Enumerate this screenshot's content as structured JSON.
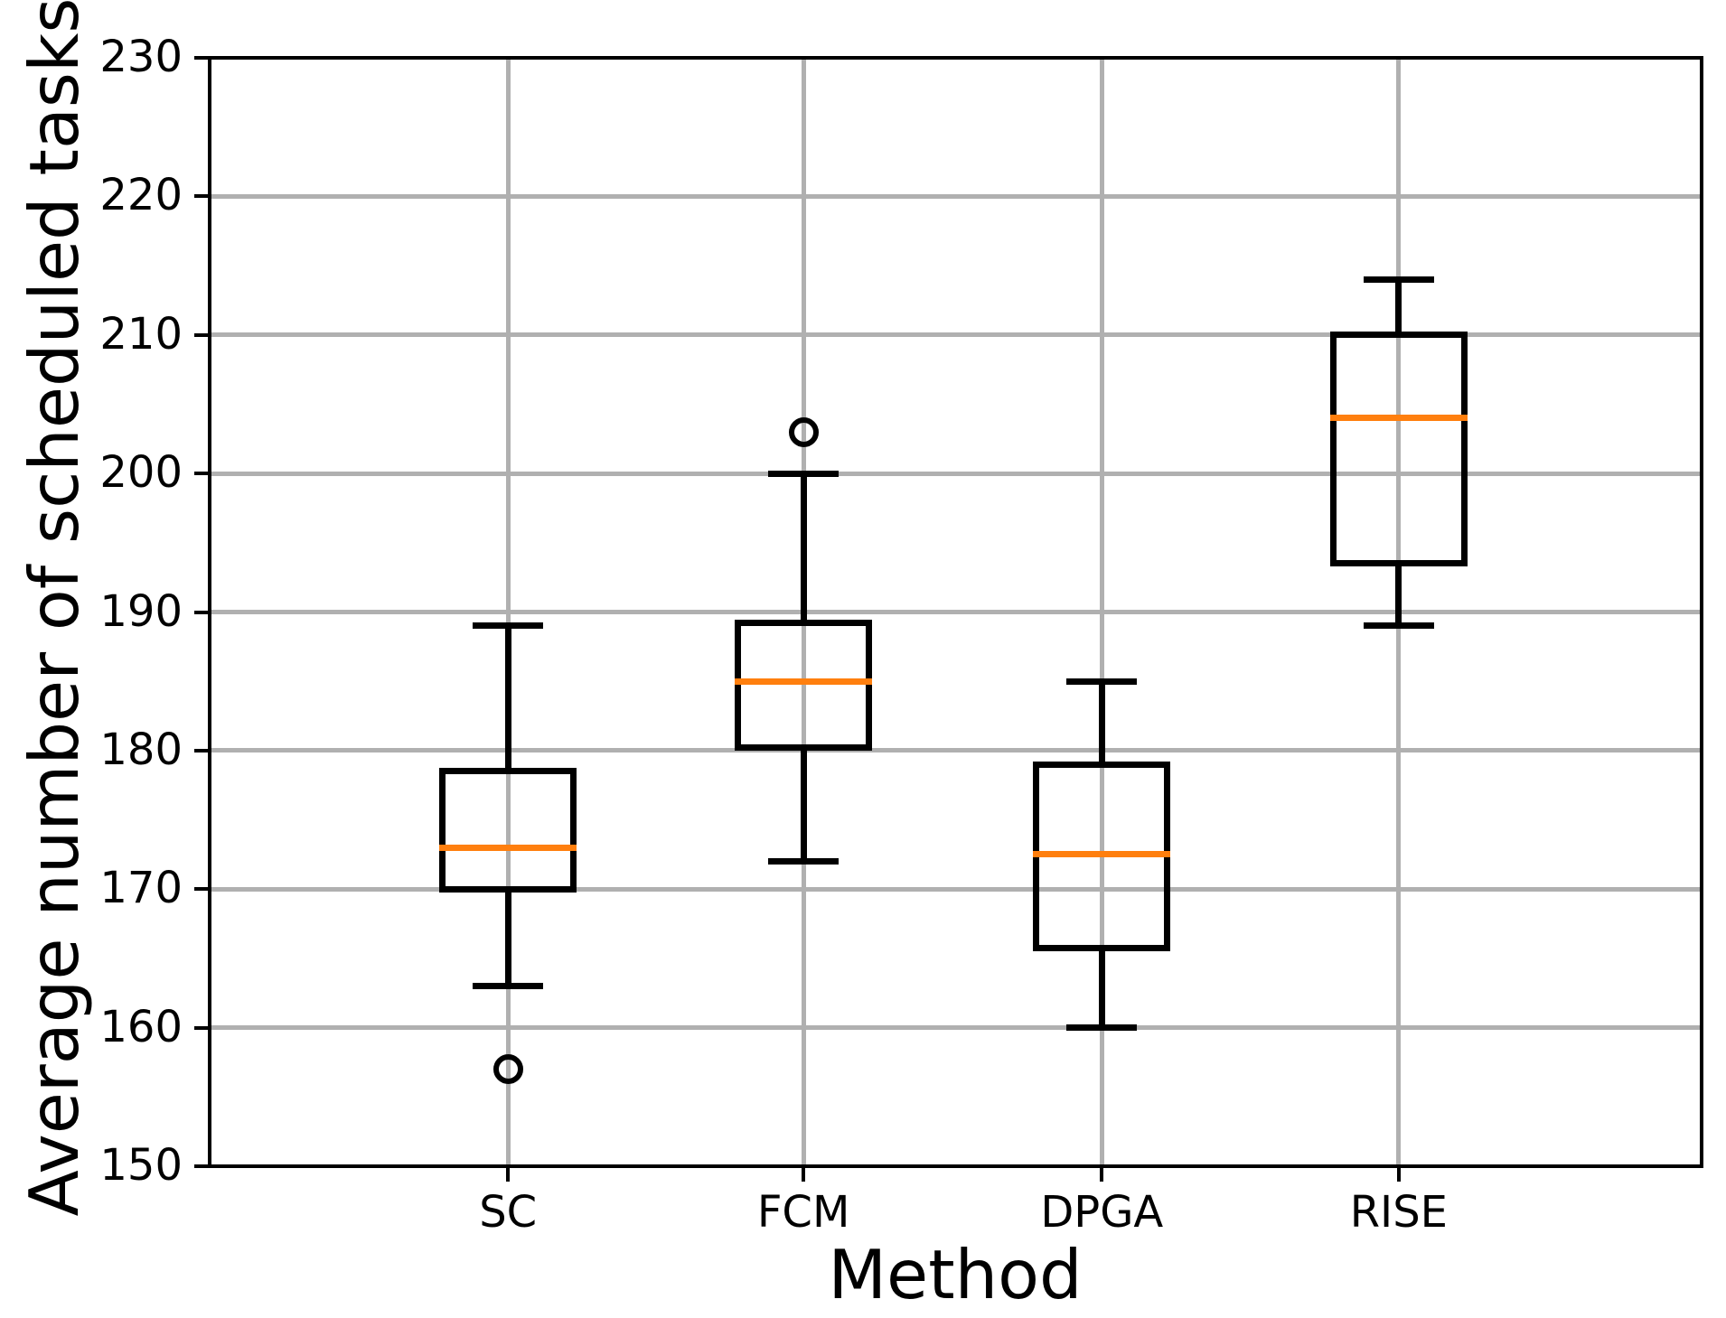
{
  "chart_data": {
    "type": "boxplot",
    "xlabel": "Method",
    "ylabel": "Average number of scheduled tasks",
    "categories": [
      "SC",
      "FCM",
      "DPGA",
      "RISE"
    ],
    "ylim": [
      150,
      230
    ],
    "yticks": [
      150,
      160,
      170,
      180,
      190,
      200,
      210,
      220,
      230
    ],
    "grid": true,
    "legend": "none",
    "colors": {
      "median": "#ff7f0e",
      "box": "#000000",
      "grid": "#b0b0b0",
      "background": "#ffffff"
    },
    "series": [
      {
        "name": "SC",
        "whisker_low": 163,
        "q1": 170.0,
        "median": 173.0,
        "q3": 178.5,
        "whisker_high": 189,
        "outliers": [
          157
        ]
      },
      {
        "name": "FCM",
        "whisker_low": 172,
        "q1": 180.25,
        "median": 185.0,
        "q3": 189.25,
        "whisker_high": 200,
        "outliers": [
          203
        ]
      },
      {
        "name": "DPGA",
        "whisker_low": 160,
        "q1": 165.75,
        "median": 172.5,
        "q3": 179.0,
        "whisker_high": 185,
        "outliers": []
      },
      {
        "name": "RISE",
        "whisker_low": 189,
        "q1": 193.5,
        "median": 204.0,
        "q3": 210.0,
        "whisker_high": 214,
        "outliers": []
      }
    ]
  }
}
